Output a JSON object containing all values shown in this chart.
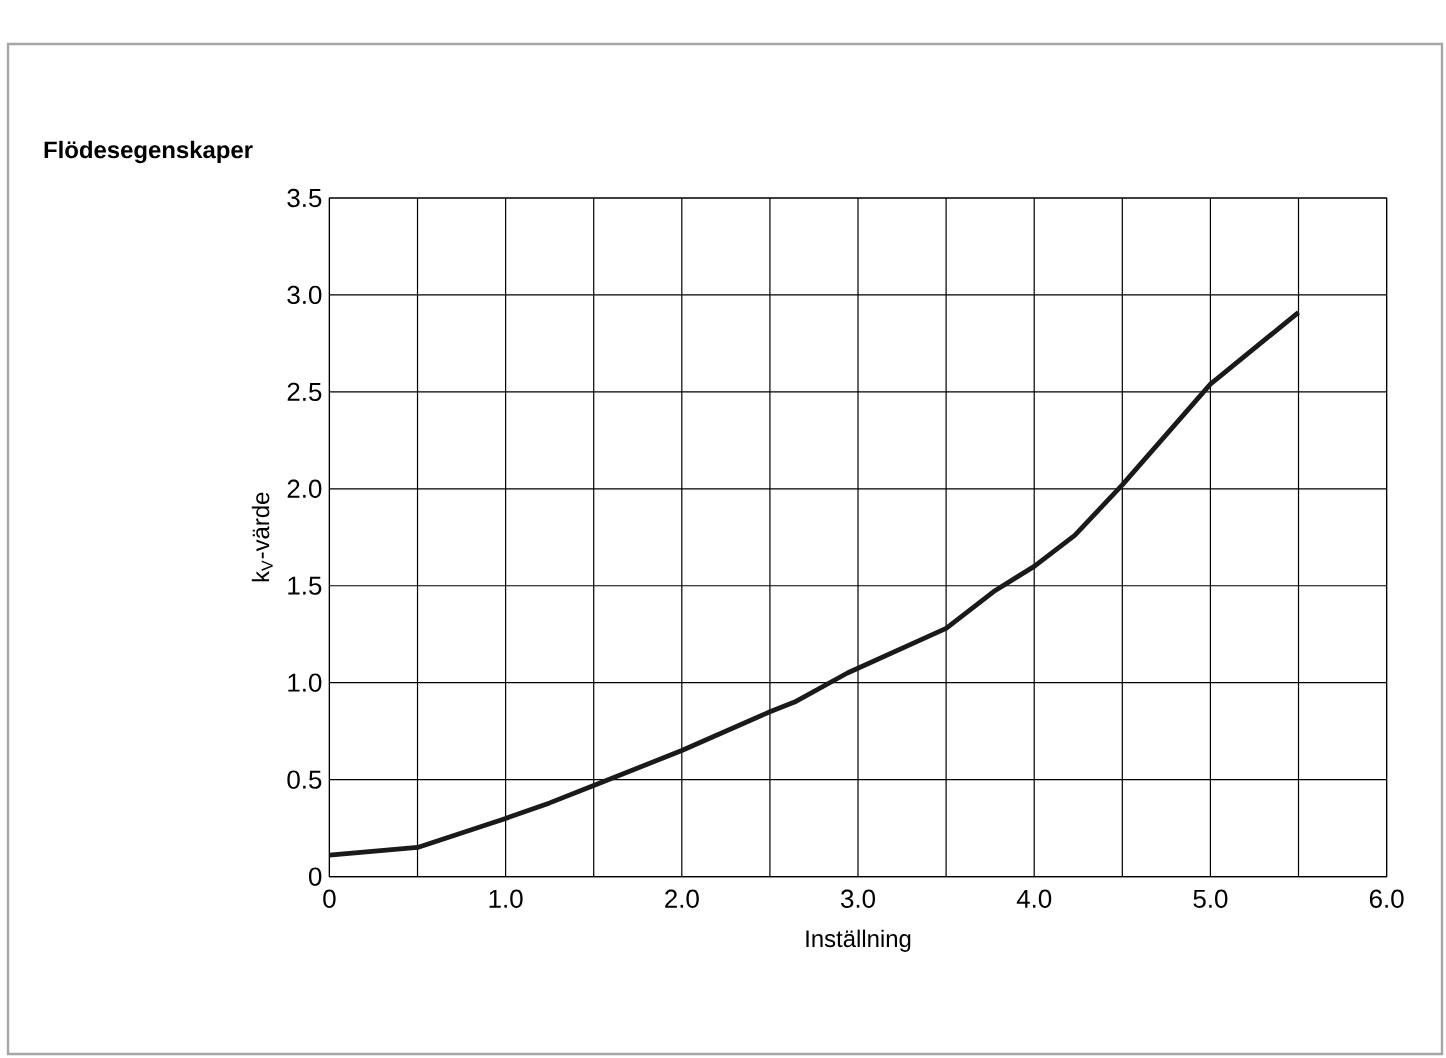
{
  "chart_data": {
    "type": "line",
    "title": "Flödesegenskaper",
    "xlabel": "Inställning",
    "ylabel": "k$_{V}$-värde",
    "x": [
      0,
      0.5,
      1.0,
      1.25,
      1.5,
      2.0,
      2.5,
      2.64,
      2.94,
      3.5,
      3.77,
      4.0,
      4.23,
      4.5,
      5.0,
      5.5
    ],
    "series": [
      {
        "color": "#1a1a1a",
        "values": [
          0.11,
          0.15,
          0.3,
          0.38,
          0.47,
          0.65,
          0.85,
          0.9,
          1.05,
          1.28,
          1.47,
          1.6,
          1.76,
          2.02,
          2.54,
          2.91
        ]
      }
    ],
    "xlim": [
      0,
      6
    ],
    "xticks": [
      0,
      {
        "value": 0.5,
        "label": null
      },
      {
        "value": 1,
        "label": "1.0"
      },
      {
        "value": 1.5,
        "label": null
      },
      {
        "value": 2,
        "label": "2.0"
      },
      {
        "value": 2.5,
        "label": null
      },
      {
        "value": 3,
        "label": "3.0"
      },
      {
        "value": 3.5,
        "label": null
      },
      {
        "value": 4,
        "label": "4.0"
      },
      {
        "value": 4.5,
        "label": null
      },
      {
        "value": 5,
        "label": "5.0"
      },
      {
        "value": 5.5,
        "label": null
      },
      {
        "value": 6,
        "label": "6.0"
      }
    ],
    "ylim": [
      0,
      3.5
    ],
    "yticks": [
      0,
      0.5,
      {
        "value": 1,
        "label": "1.0"
      },
      1.5,
      {
        "value": 2,
        "label": "2.0"
      },
      2.5,
      {
        "value": 3,
        "label": "3.0"
      },
      3.5
    ],
    "grid": true,
    "marker": "none",
    "line_style": "solid"
  }
}
